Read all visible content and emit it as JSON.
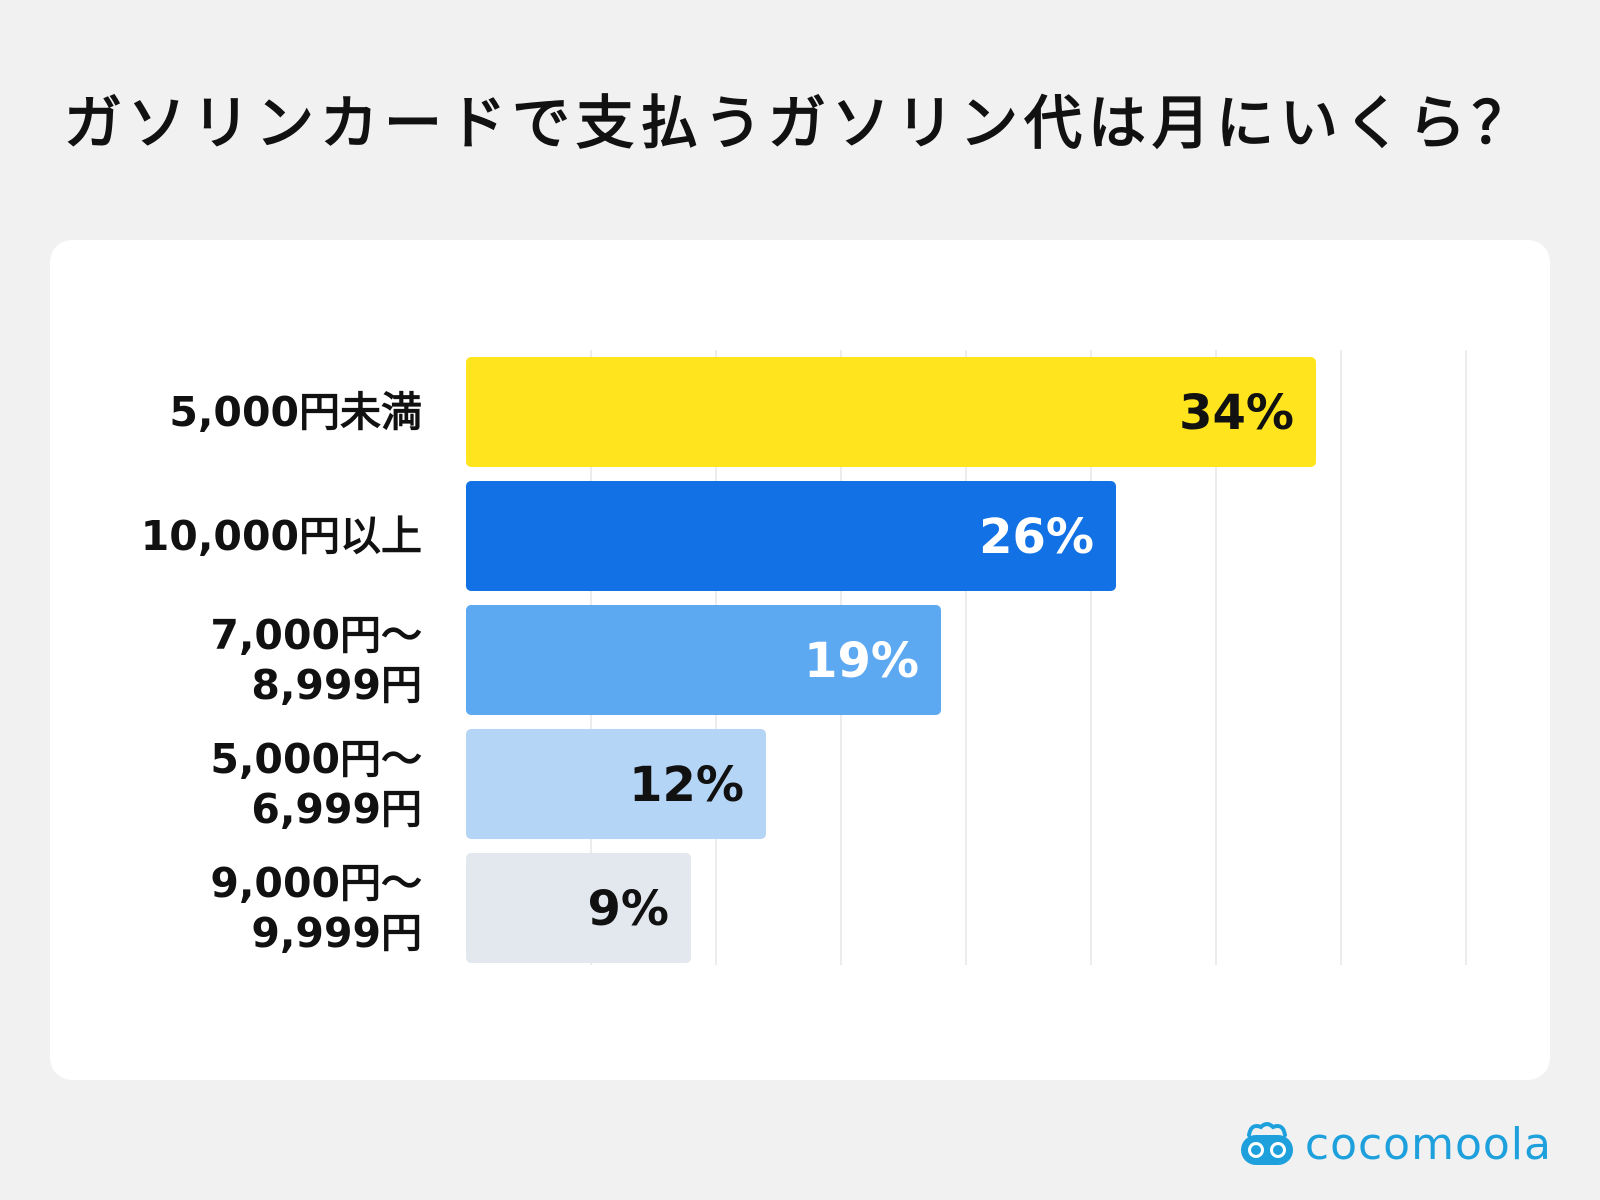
{
  "title": "ガソリンカードで支払うガソリン代は月にいくら？",
  "brand": {
    "name": "cocomoola",
    "icon": "cocomoola-logo-icon",
    "color": "#1da0dc"
  },
  "chart_data": {
    "type": "bar",
    "orientation": "horizontal",
    "categories": [
      [
        "5,000円未満"
      ],
      [
        "10,000円以上"
      ],
      [
        "7,000円〜",
        "8,999円"
      ],
      [
        "5,000円〜",
        "6,999円"
      ],
      [
        "9,000円〜",
        "9,999円"
      ]
    ],
    "values": [
      34,
      26,
      19,
      12,
      9
    ],
    "value_labels": [
      "34%",
      "26%",
      "19%",
      "12%",
      "9%"
    ],
    "colors": [
      "#ffe41e",
      "#1171e5",
      "#5ca9f2",
      "#b5d5f7",
      "#e3e8ee"
    ],
    "label_colors": [
      "#111111",
      "#ffffff",
      "#ffffff",
      "#111111",
      "#111111"
    ],
    "xlim": [
      0,
      40
    ],
    "grid": true,
    "xlabel": "",
    "ylabel": ""
  }
}
